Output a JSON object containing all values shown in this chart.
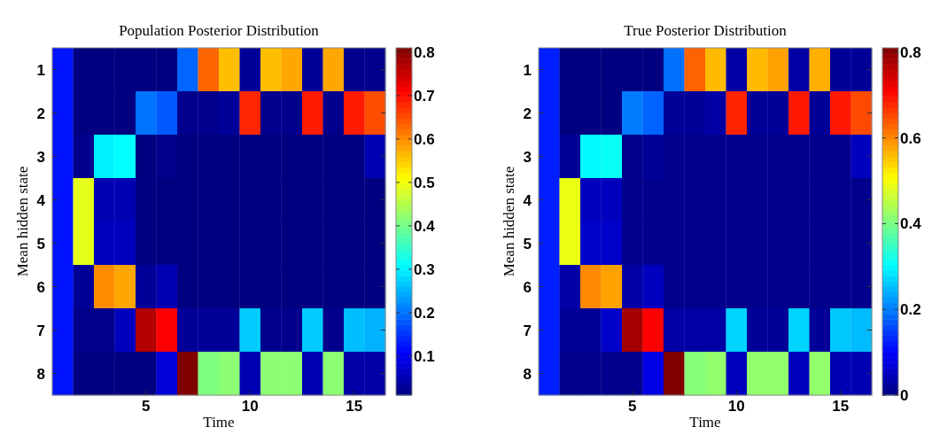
{
  "chart_data": [
    {
      "type": "heatmap",
      "title": "Population Posterior Distribution",
      "xlabel": "Time",
      "ylabel": "Mean hidden state",
      "categories": [
        null,
        null,
        null,
        null,
        "5",
        null,
        null,
        null,
        null,
        "10",
        null,
        null,
        null,
        null,
        "15",
        null
      ],
      "y_categories": [
        "1",
        "2",
        "3",
        "4",
        "5",
        "6",
        "7",
        "8"
      ],
      "cells": [
        [
          0.125,
          0.01,
          0.01,
          0.01,
          0.01,
          0.01,
          0.19,
          0.63,
          0.56,
          0.03,
          0.56,
          0.58,
          0.03,
          0.58,
          0.02,
          0.02
        ],
        [
          0.125,
          0.01,
          0.01,
          0.01,
          0.2,
          0.18,
          0.02,
          0.02,
          0.03,
          0.68,
          0.02,
          0.02,
          0.69,
          0.02,
          0.69,
          0.65
        ],
        [
          0.125,
          0.02,
          0.3,
          0.31,
          0.01,
          0.02,
          0.01,
          0.01,
          0.01,
          0.01,
          0.01,
          0.01,
          0.01,
          0.01,
          0.01,
          0.05
        ],
        [
          0.125,
          0.49,
          0.05,
          0.05,
          0.01,
          0.01,
          0.01,
          0.01,
          0.01,
          0.01,
          0.01,
          0.01,
          0.01,
          0.01,
          0.01,
          0.01
        ],
        [
          0.125,
          0.49,
          0.06,
          0.06,
          0.01,
          0.01,
          0.01,
          0.01,
          0.01,
          0.01,
          0.01,
          0.01,
          0.01,
          0.01,
          0.01,
          0.01
        ],
        [
          0.125,
          0.03,
          0.6,
          0.58,
          0.03,
          0.05,
          0.01,
          0.01,
          0.01,
          0.01,
          0.01,
          0.01,
          0.01,
          0.01,
          0.01,
          0.01
        ],
        [
          0.125,
          0.02,
          0.02,
          0.06,
          0.77,
          0.71,
          0.03,
          0.03,
          0.03,
          0.27,
          0.02,
          0.02,
          0.27,
          0.02,
          0.26,
          0.25
        ],
        [
          0.125,
          0.01,
          0.01,
          0.01,
          0.01,
          0.08,
          0.81,
          0.41,
          0.42,
          0.05,
          0.42,
          0.42,
          0.05,
          0.42,
          0.04,
          0.04
        ]
      ],
      "clim": [
        0.01,
        0.81
      ],
      "cticks": [
        0.1,
        0.2,
        0.3,
        0.4,
        0.5,
        0.6,
        0.7,
        0.8
      ]
    },
    {
      "type": "heatmap",
      "title": "True Posterior Distribution",
      "xlabel": "Time",
      "ylabel": "Mean hidden state",
      "categories": [
        null,
        null,
        null,
        null,
        "5",
        null,
        null,
        null,
        null,
        "10",
        null,
        null,
        null,
        null,
        "15",
        null
      ],
      "y_categories": [
        "1",
        "2",
        "3",
        "4",
        "5",
        "6",
        "7",
        "8"
      ],
      "cells": [
        [
          0.125,
          0.0,
          0.0,
          0.0,
          0.0,
          0.0,
          0.19,
          0.63,
          0.56,
          0.03,
          0.56,
          0.58,
          0.03,
          0.57,
          0.02,
          0.02
        ],
        [
          0.125,
          0.0,
          0.0,
          0.0,
          0.2,
          0.18,
          0.02,
          0.02,
          0.03,
          0.68,
          0.02,
          0.02,
          0.69,
          0.02,
          0.69,
          0.65
        ],
        [
          0.125,
          0.02,
          0.3,
          0.31,
          0.01,
          0.02,
          0.01,
          0.01,
          0.01,
          0.01,
          0.01,
          0.01,
          0.01,
          0.01,
          0.01,
          0.05
        ],
        [
          0.125,
          0.49,
          0.05,
          0.05,
          0.01,
          0.01,
          0.01,
          0.01,
          0.01,
          0.01,
          0.01,
          0.01,
          0.01,
          0.01,
          0.01,
          0.01
        ],
        [
          0.125,
          0.49,
          0.06,
          0.06,
          0.01,
          0.01,
          0.01,
          0.01,
          0.01,
          0.01,
          0.01,
          0.01,
          0.01,
          0.01,
          0.01,
          0.01
        ],
        [
          0.125,
          0.03,
          0.6,
          0.58,
          0.03,
          0.05,
          0.01,
          0.01,
          0.01,
          0.01,
          0.01,
          0.01,
          0.01,
          0.01,
          0.01,
          0.01
        ],
        [
          0.125,
          0.02,
          0.02,
          0.06,
          0.78,
          0.71,
          0.03,
          0.03,
          0.03,
          0.27,
          0.02,
          0.02,
          0.27,
          0.02,
          0.26,
          0.25
        ],
        [
          0.125,
          0.01,
          0.01,
          0.01,
          0.01,
          0.08,
          0.81,
          0.41,
          0.42,
          0.05,
          0.42,
          0.42,
          0.05,
          0.42,
          0.04,
          0.04
        ]
      ],
      "clim": [
        0.0,
        0.81
      ],
      "cticks": [
        0,
        0.2,
        0.4,
        0.6,
        0.8
      ]
    }
  ]
}
